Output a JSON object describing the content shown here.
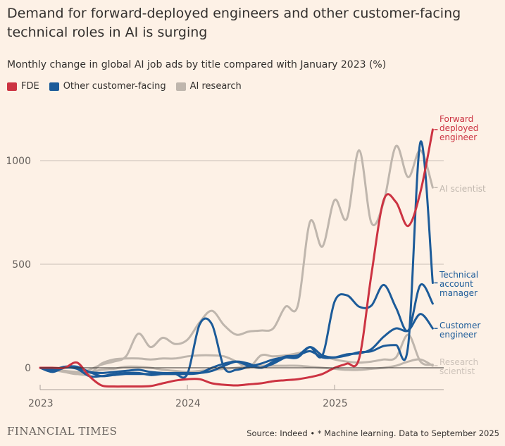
{
  "title": "Demand for forward-deployed engineers and other customer-facing technical roles in AI is surging",
  "subtitle": "Monthly change in global AI job ads by title compared with January 2023 (%)",
  "legend": [
    {
      "label": "FDE",
      "color": "#cc3342"
    },
    {
      "label": "Other customer-facing",
      "color": "#1c5b99"
    },
    {
      "label": "AI research",
      "color": "#bfb6ad"
    }
  ],
  "footer": {
    "brand": "FINANCIAL TIMES",
    "source": "Source: Indeed • * Machine learning. Data to September 2025"
  },
  "chart_data": {
    "type": "line",
    "title": "Demand for forward-deployed engineers and other customer-facing technical roles in AI is surging",
    "subtitle": "Monthly change in global AI job ads by title compared with January 2023 (%)",
    "x_start": "2023-01",
    "x_end": "2025-09",
    "x_frequency": "monthly",
    "x_ticks": [
      "2023",
      "2024",
      "2025"
    ],
    "y_ticks": [
      0,
      500,
      1000
    ],
    "ylim": [
      -110,
      1200
    ],
    "grid": true,
    "legend_position": "top-left",
    "series": [
      {
        "name": "Research scientist",
        "group": "AI research",
        "color": "#bfb6ad",
        "label_color": "#cdc3ba",
        "values": [
          0,
          -5,
          -15,
          -20,
          -20,
          -10,
          -5,
          5,
          5,
          0,
          -10,
          -15,
          -20,
          -15,
          -10,
          -5,
          0,
          5,
          10,
          10,
          10,
          10,
          5,
          0,
          -5,
          -10,
          -10,
          -5,
          0,
          10,
          30,
          40,
          10
        ]
      },
      {
        "group": "AI research",
        "color": "#bfb6ad",
        "values": [
          0,
          -10,
          -20,
          -30,
          -30,
          20,
          40,
          45,
          45,
          40,
          45,
          45,
          55,
          60,
          60,
          55,
          30,
          0,
          60,
          55,
          60,
          70,
          80,
          60,
          40,
          30,
          25,
          30,
          40,
          50,
          160,
          30,
          15
        ]
      },
      {
        "name": "AI scientist",
        "group": "AI research",
        "color": "#bfb6ad",
        "label_color": "#bfb6ad",
        "values": [
          0,
          -10,
          -20,
          -30,
          -10,
          15,
          30,
          55,
          165,
          100,
          145,
          115,
          135,
          220,
          275,
          205,
          160,
          175,
          180,
          190,
          295,
          300,
          705,
          585,
          810,
          720,
          1050,
          700,
          800,
          1070,
          920,
          1050,
          870
        ]
      },
      {
        "group": "Other customer-facing",
        "color": "#1c5b99",
        "values": [
          0,
          -10,
          5,
          0,
          -20,
          -25,
          -20,
          -15,
          -10,
          -20,
          -25,
          -25,
          -25,
          -25,
          -15,
          10,
          30,
          20,
          0,
          30,
          55,
          60,
          100,
          60,
          320,
          350,
          295,
          300,
          400,
          290,
          180,
          400,
          310
        ]
      },
      {
        "name": "Customer engineer",
        "group": "Other customer-facing",
        "color": "#1c5b99",
        "label_color": "#1c5b99",
        "values": [
          0,
          -10,
          5,
          5,
          -20,
          -40,
          -35,
          -30,
          -30,
          -30,
          -30,
          -30,
          -30,
          -25,
          0,
          20,
          30,
          10,
          0,
          20,
          50,
          60,
          80,
          50,
          50,
          65,
          70,
          90,
          150,
          190,
          180,
          260,
          190
        ]
      },
      {
        "name": "Technical account manager",
        "group": "Other customer-facing",
        "color": "#1c5b99",
        "label_color": "#1c5b99",
        "values": [
          0,
          -20,
          0,
          -5,
          -40,
          -40,
          -30,
          -25,
          -25,
          -35,
          -30,
          -30,
          -30,
          210,
          210,
          0,
          -10,
          5,
          20,
          40,
          50,
          50,
          100,
          60,
          50,
          60,
          75,
          80,
          105,
          110,
          110,
          1090,
          410
        ]
      },
      {
        "name": "Forward deployed engineer",
        "group": "FDE",
        "color": "#cc3342",
        "label_color": "#cc3342",
        "values": [
          0,
          0,
          0,
          25,
          -40,
          -85,
          -90,
          -90,
          -90,
          -88,
          -75,
          -62,
          -55,
          -55,
          -75,
          -82,
          -85,
          -80,
          -75,
          -65,
          -60,
          -55,
          -45,
          -30,
          0,
          20,
          45,
          450,
          810,
          800,
          685,
          850,
          1150
        ]
      }
    ],
    "annotations": [
      {
        "series": "Forward deployed engineer",
        "lines": [
          "Forward",
          "deployed",
          "engineer"
        ]
      },
      {
        "series": "AI scientist",
        "lines": [
          "AI scientist"
        ]
      },
      {
        "series": "Technical account manager",
        "lines": [
          "Technical",
          "account",
          "manager"
        ]
      },
      {
        "series": "Customer engineer",
        "lines": [
          "Customer",
          "engineer"
        ]
      },
      {
        "series": "Research scientist",
        "lines": [
          "Research",
          "scientist"
        ]
      }
    ]
  }
}
